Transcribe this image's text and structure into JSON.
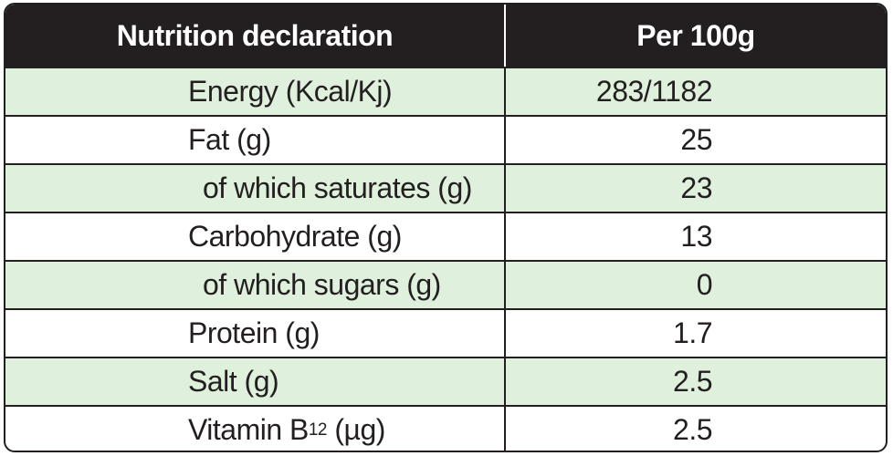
{
  "header": {
    "label": "Nutrition declaration",
    "value": "Per 100g"
  },
  "rows": [
    {
      "label": "Energy (Kcal/Kj)",
      "value": "283/1182",
      "shaded": true,
      "indent": false
    },
    {
      "label": "Fat (g)",
      "value": "25",
      "shaded": false,
      "indent": false
    },
    {
      "label": "of which saturates (g)",
      "value": "23",
      "shaded": true,
      "indent": true
    },
    {
      "label": "Carbohydrate (g)",
      "value": "13",
      "shaded": false,
      "indent": false
    },
    {
      "label": "of which sugars (g)",
      "value": "0",
      "shaded": true,
      "indent": true
    },
    {
      "label": "Protein (g)",
      "value": "1.7",
      "shaded": false,
      "indent": false
    },
    {
      "label": "Salt (g)",
      "value": "2.5",
      "shaded": true,
      "indent": false
    },
    {
      "label_prefix": "Vitamin B",
      "label_sub": "12",
      "label_suffix": " (µg)",
      "value": "2.5",
      "shaded": false,
      "indent": false
    }
  ],
  "colors": {
    "header_bg": "#231f20",
    "shaded_row": "#dff0dc",
    "border": "#231f20"
  }
}
